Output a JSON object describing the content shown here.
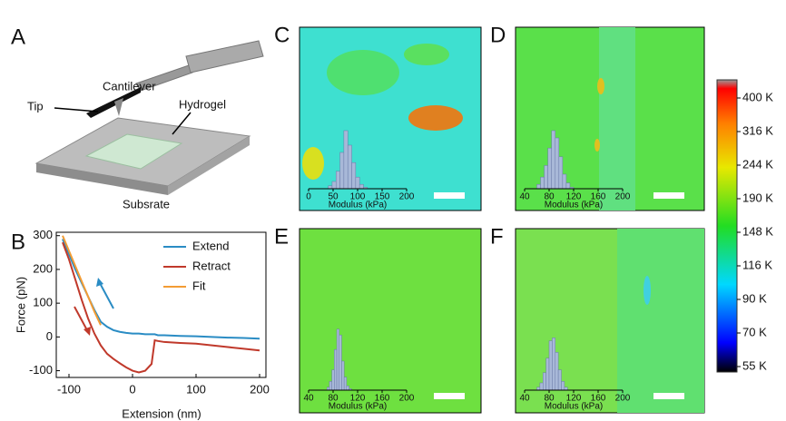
{
  "panels": [
    "A",
    "B",
    "C",
    "D",
    "E",
    "F"
  ],
  "diagram": {
    "labels": [
      "Cantilever",
      "Tip",
      "Hydrogel",
      "Subsrate"
    ]
  },
  "chart_data": {
    "type": "line",
    "xlabel": "Extension (nm)",
    "ylabel": "Force (pN)",
    "x": [
      -110,
      -100,
      -90,
      -80,
      -70,
      -60,
      -50,
      -40,
      -30,
      -20,
      -10,
      0,
      10,
      20,
      30,
      35,
      40,
      50,
      75,
      100,
      125,
      150,
      175,
      200
    ],
    "series": [
      {
        "name": "Extend",
        "color": "#2a8cc4",
        "values": [
          290,
          245,
          200,
          160,
          120,
          80,
          45,
          30,
          20,
          15,
          12,
          10,
          10,
          8,
          8,
          8,
          5,
          5,
          3,
          2,
          0,
          -2,
          -3,
          -5
        ]
      },
      {
        "name": "Retract",
        "color": "#c0392b",
        "values": [
          280,
          230,
          170,
          110,
          55,
          10,
          -25,
          -50,
          -65,
          -78,
          -90,
          -100,
          -105,
          -100,
          -80,
          -10,
          -12,
          -15,
          -18,
          -20,
          -25,
          -30,
          -35,
          -40
        ]
      },
      {
        "name": "Fit",
        "color": "#f39c34",
        "values": [
          300,
          255,
          210,
          165,
          120,
          75,
          35,
          null,
          null,
          null,
          null,
          null,
          null,
          null,
          null,
          null,
          null,
          null,
          null,
          null,
          null,
          null,
          null,
          null
        ]
      }
    ],
    "xlim": [
      -120,
      210
    ],
    "ylim": [
      -120,
      310
    ],
    "xticks": [
      -100,
      0,
      100,
      200
    ],
    "yticks": [
      -100,
      0,
      100,
      200,
      300
    ]
  },
  "maps": [
    {
      "xlabel": "Modulus (kPa)",
      "xlim": [
        0,
        200
      ],
      "xticks": [
        0,
        50,
        100,
        150,
        200
      ],
      "bins": [
        40,
        48,
        56,
        64,
        72,
        80,
        88,
        96,
        104,
        112,
        120
      ],
      "counts": [
        2,
        5,
        12,
        25,
        40,
        30,
        18,
        8,
        3,
        1
      ]
    },
    {
      "xlabel": "Modulus (kPa)",
      "xlim": [
        40,
        200
      ],
      "xticks": [
        40,
        80,
        120,
        160,
        200
      ],
      "bins": [
        60,
        66,
        72,
        78,
        84,
        90,
        96,
        102,
        108,
        114,
        120
      ],
      "counts": [
        3,
        8,
        16,
        28,
        40,
        35,
        22,
        10,
        4,
        1
      ]
    },
    {
      "xlabel": "Modulus (kPa)",
      "xlim": [
        40,
        200
      ],
      "xticks": [
        40,
        80,
        120,
        160,
        200
      ],
      "bins": [
        70,
        74,
        78,
        82,
        86,
        90,
        94,
        98,
        102,
        106,
        110
      ],
      "counts": [
        2,
        6,
        14,
        28,
        42,
        38,
        20,
        9,
        3,
        1
      ]
    },
    {
      "xlabel": "Modulus (kPa)",
      "xlim": [
        40,
        200
      ],
      "xticks": [
        40,
        80,
        120,
        160,
        200
      ],
      "bins": [
        60,
        65,
        70,
        75,
        80,
        85,
        90,
        95,
        100,
        105,
        110
      ],
      "counts": [
        2,
        5,
        12,
        22,
        34,
        36,
        26,
        14,
        6,
        2
      ]
    }
  ],
  "colorbar": {
    "labels": [
      "400 K",
      "316 K",
      "244 K",
      "190 K",
      "148 K",
      "116 K",
      "90 K",
      "70 K",
      "55 K"
    ]
  }
}
